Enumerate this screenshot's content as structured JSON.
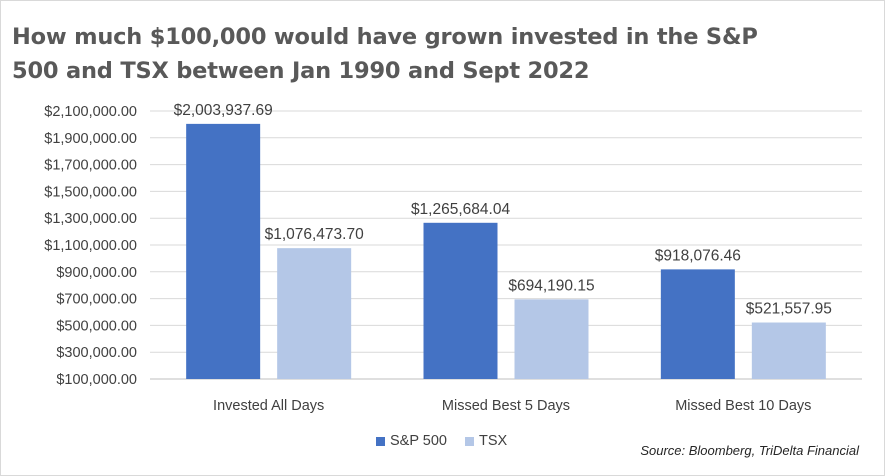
{
  "title": "How much $100,000 would have grown invested in the S&P 500 and TSX between Jan 1990 and Sept 2022",
  "source": "Source: Bloomberg, TriDelta Financial",
  "chart_data": {
    "type": "bar",
    "title": "How much $100,000 would have grown invested in the S&P 500 and TSX between Jan 1990 and Sept 2022",
    "xlabel": "",
    "ylabel": "",
    "categories": [
      "Invested All Days",
      "Missed Best 5 Days",
      "Missed Best 10 Days"
    ],
    "series": [
      {
        "name": "S&P 500",
        "color": "#4472c4",
        "values": [
          2003937.69,
          1265684.04,
          918076.46
        ],
        "labels": [
          "$2,003,937.69",
          "$1,265,684.04",
          "$918,076.46"
        ]
      },
      {
        "name": "TSX",
        "color": "#b4c7e7",
        "values": [
          1076473.7,
          694190.15,
          521557.95
        ],
        "labels": [
          "$1,076,473.70",
          "$694,190.15",
          "$521,557.95"
        ]
      }
    ],
    "ylim": [
      100000,
      2100000
    ],
    "yticks": [
      100000,
      300000,
      500000,
      700000,
      900000,
      1100000,
      1300000,
      1500000,
      1700000,
      1900000,
      2100000
    ],
    "ytick_labels": [
      "$100,000.00",
      "$300,000.00",
      "$500,000.00",
      "$700,000.00",
      "$900,000.00",
      "$1,100,000.00",
      "$1,300,000.00",
      "$1,500,000.00",
      "$1,700,000.00",
      "$1,900,000.00",
      "$2,100,000.00"
    ],
    "grid": true,
    "legend": "bottom"
  }
}
